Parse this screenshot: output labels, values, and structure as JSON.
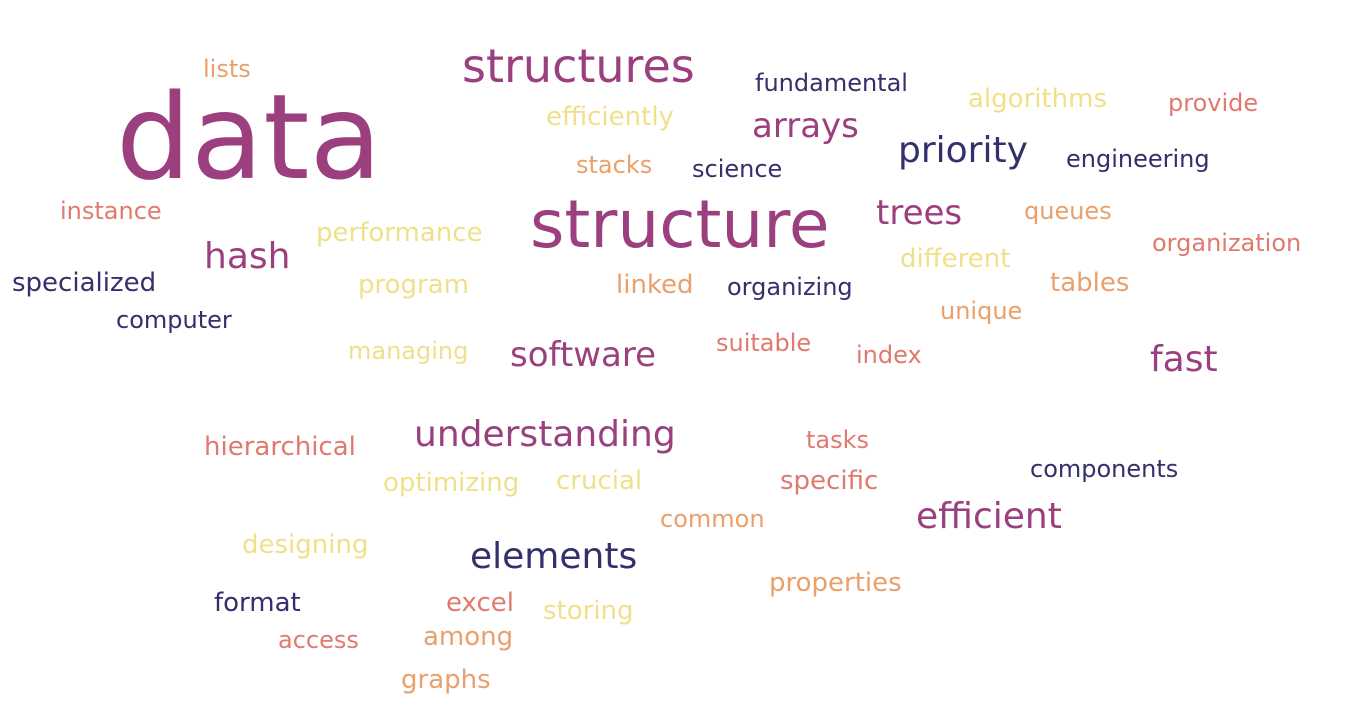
{
  "colors": {
    "purple": "#9b3f7e",
    "navy": "#33306b",
    "coral": "#e07a6e",
    "orange": "#e9a06b",
    "yellow": "#f0e08a"
  },
  "words": [
    {
      "text": "data",
      "color": "#9b3f7e"
    },
    {
      "text": "structure",
      "color": "#9b3f7e"
    },
    {
      "text": "structures",
      "color": "#9b3f7e"
    },
    {
      "text": "arrays",
      "color": "#9b3f7e"
    },
    {
      "text": "priority",
      "color": "#33306b"
    },
    {
      "text": "trees",
      "color": "#9b3f7e"
    },
    {
      "text": "hash",
      "color": "#9b3f7e"
    },
    {
      "text": "software",
      "color": "#9b3f7e"
    },
    {
      "text": "fast",
      "color": "#9b3f7e"
    },
    {
      "text": "understanding",
      "color": "#9b3f7e"
    },
    {
      "text": "efficient",
      "color": "#9b3f7e"
    },
    {
      "text": "elements",
      "color": "#33306b"
    },
    {
      "text": "fundamental",
      "color": "#33306b"
    },
    {
      "text": "engineering",
      "color": "#33306b"
    },
    {
      "text": "organizing",
      "color": "#33306b"
    },
    {
      "text": "science",
      "color": "#33306b"
    },
    {
      "text": "components",
      "color": "#33306b"
    },
    {
      "text": "specialized",
      "color": "#33306b"
    },
    {
      "text": "computer",
      "color": "#33306b"
    },
    {
      "text": "format",
      "color": "#33306b"
    },
    {
      "text": "provide",
      "color": "#e07a6e"
    },
    {
      "text": "organization",
      "color": "#e07a6e"
    },
    {
      "text": "instance",
      "color": "#e07a6e"
    },
    {
      "text": "suitable",
      "color": "#e07a6e"
    },
    {
      "text": "index",
      "color": "#e07a6e"
    },
    {
      "text": "hierarchical",
      "color": "#e07a6e"
    },
    {
      "text": "tasks",
      "color": "#e07a6e"
    },
    {
      "text": "specific",
      "color": "#e07a6e"
    },
    {
      "text": "excel",
      "color": "#e07a6e"
    },
    {
      "text": "access",
      "color": "#e07a6e"
    },
    {
      "text": "lists",
      "color": "#e9a06b"
    },
    {
      "text": "stacks",
      "color": "#e9a06b"
    },
    {
      "text": "queues",
      "color": "#e9a06b"
    },
    {
      "text": "linked",
      "color": "#e9a06b"
    },
    {
      "text": "tables",
      "color": "#e9a06b"
    },
    {
      "text": "unique",
      "color": "#e9a06b"
    },
    {
      "text": "common",
      "color": "#e9a06b"
    },
    {
      "text": "properties",
      "color": "#e9a06b"
    },
    {
      "text": "among",
      "color": "#e9a06b"
    },
    {
      "text": "graphs",
      "color": "#e9a06b"
    },
    {
      "text": "efficiently",
      "color": "#f0e08a"
    },
    {
      "text": "algorithms",
      "color": "#f0e08a"
    },
    {
      "text": "performance",
      "color": "#f0e08a"
    },
    {
      "text": "different",
      "color": "#f0e08a"
    },
    {
      "text": "program",
      "color": "#f0e08a"
    },
    {
      "text": "managing",
      "color": "#f0e08a"
    },
    {
      "text": "optimizing",
      "color": "#f0e08a"
    },
    {
      "text": "crucial",
      "color": "#f0e08a"
    },
    {
      "text": "designing",
      "color": "#f0e08a"
    },
    {
      "text": "storing",
      "color": "#f0e08a"
    }
  ]
}
